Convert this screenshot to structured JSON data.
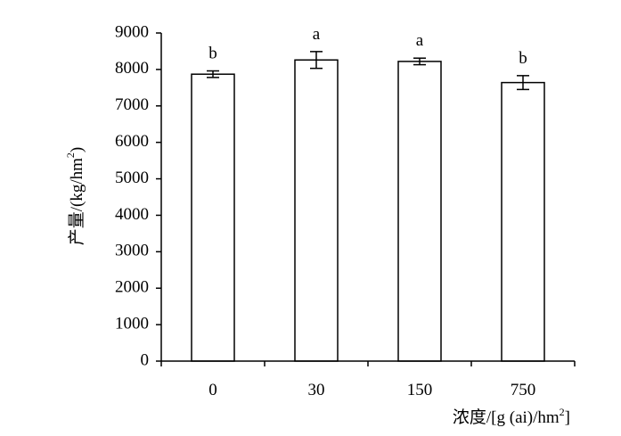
{
  "chart_data": {
    "type": "bar",
    "categories": [
      "0",
      "30",
      "150",
      "750"
    ],
    "values": [
      7870,
      8260,
      8220,
      7640
    ],
    "errors": [
      90,
      230,
      90,
      190
    ],
    "significance": [
      "b",
      "a",
      "a",
      "b"
    ],
    "ylabel": "产量/(kg/hm",
    "ylabel_sup": "2",
    "ylabel_end": ")",
    "xlabel": "浓度/[g (ai)/hm",
    "xlabel_sup": "2",
    "xlabel_end": "]",
    "ylim": [
      0,
      9000
    ],
    "yticks": [
      0,
      1000,
      2000,
      3000,
      4000,
      5000,
      6000,
      7000,
      8000,
      9000
    ],
    "grid": false,
    "legend": "none",
    "colors": {
      "bar_fill": "#ffffff",
      "bar_stroke": "#000000",
      "axis": "#000000"
    }
  }
}
